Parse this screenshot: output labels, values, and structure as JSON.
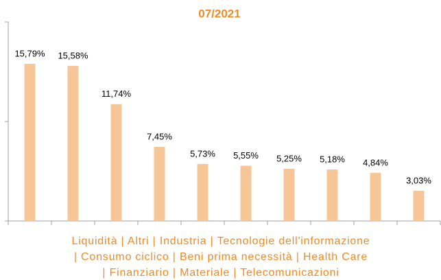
{
  "chart_data": {
    "type": "bar",
    "title": "07/2021",
    "categories": [
      null,
      null,
      null,
      null,
      null,
      null,
      null,
      null,
      null,
      null
    ],
    "values": [
      15.79,
      15.58,
      11.74,
      7.45,
      5.73,
      5.55,
      5.25,
      5.18,
      4.84,
      3.03
    ],
    "value_labels": [
      "15,79%",
      "15,58%",
      "11,74%",
      "7,45%",
      "5,73%",
      "5,55%",
      "5,25%",
      "5,18%",
      "4,84%",
      "3,03%"
    ],
    "color": "#f7c696",
    "ylim": [
      0,
      20
    ],
    "yticks": [
      0,
      10,
      20
    ],
    "grid": false,
    "caption": [
      "Liquidità | Altri | Industria | Tecnologie dell'informazione",
      "| Consumo ciclico | Beni prima necessità | Health Care",
      "| Finanziario | Materiale | Telecomunicazioni"
    ]
  }
}
